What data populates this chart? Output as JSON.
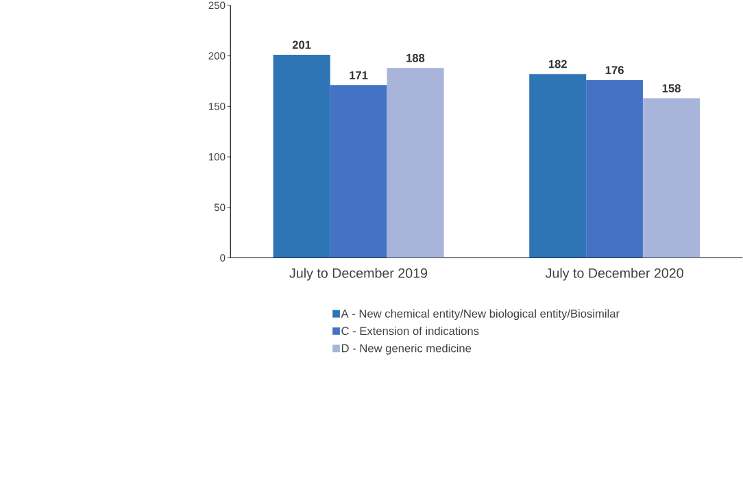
{
  "chart_data": {
    "type": "bar",
    "categories": [
      "July to December 2019",
      "July to December 2020"
    ],
    "series": [
      {
        "name": "A - New chemical entity/New biological entity/Biosimilar",
        "color": "#2e75b6",
        "values": [
          201,
          182
        ]
      },
      {
        "name": "C - Extension of indications",
        "color": "#4472c4",
        "values": [
          171,
          176
        ]
      },
      {
        "name": "D - New generic medicine",
        "color": "#a9b4da",
        "values": [
          188,
          158
        ]
      }
    ],
    "ylim": [
      0,
      250
    ],
    "yticks": [
      0,
      50,
      100,
      150,
      200,
      250
    ],
    "data_labels": true,
    "grid": false,
    "legend": "bottom"
  }
}
